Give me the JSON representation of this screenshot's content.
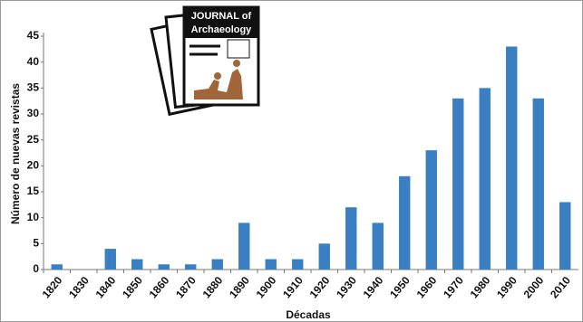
{
  "chart_data": {
    "type": "bar",
    "x_label": "Décadas",
    "y_label": "Número de nuevas revistas",
    "annotations": [
      "JOURNAL of",
      "Archaeology"
    ],
    "categories": [
      "1820",
      "1830",
      "1840",
      "1850",
      "1860",
      "1870",
      "1880",
      "1890",
      "1900",
      "1910",
      "1920",
      "1930",
      "1940",
      "1950",
      "1960",
      "1970",
      "1980",
      "1990",
      "2000",
      "2010"
    ],
    "values": [
      1,
      0,
      4,
      2,
      1,
      1,
      2,
      9,
      2,
      2,
      5,
      12,
      9,
      18,
      23,
      33,
      35,
      43,
      33,
      13
    ],
    "color": "#3a7fc1",
    "ylim": [
      0,
      45
    ],
    "yticks": [
      0,
      5,
      10,
      15,
      20,
      25,
      30,
      35,
      40,
      45
    ],
    "grid": false
  }
}
